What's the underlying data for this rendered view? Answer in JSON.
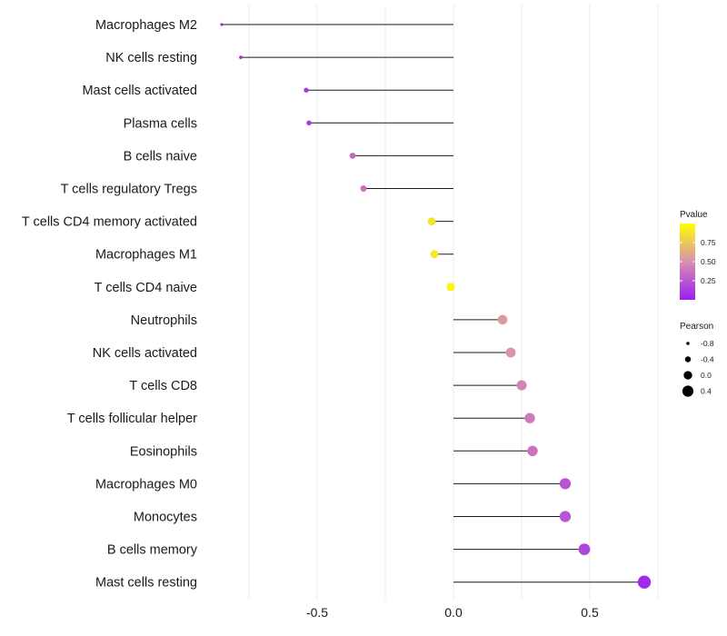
{
  "chart_data": {
    "type": "lollipop",
    "title": "",
    "xlabel": "",
    "ylabel": "",
    "xlim": [
      -1.0,
      0.75
    ],
    "xticks": [
      -0.5,
      0.0,
      0.5
    ],
    "xtick_labels": [
      "-0.5",
      "0.0",
      "0.5"
    ],
    "grid": true,
    "categories": [
      "Macrophages M2",
      "NK cells resting",
      "Mast cells activated",
      "Plasma cells",
      "B cells naive",
      "T cells regulatory  Tregs",
      "T cells CD4 memory activated",
      "Macrophages M1",
      "T cells CD4 naive",
      "Neutrophils",
      "NK cells activated",
      "T cells CD8",
      "T cells follicular helper",
      "Eosinophils",
      "Macrophages M0",
      "Monocytes",
      "B cells memory",
      "Mast cells resting"
    ],
    "pearson": [
      -0.85,
      -0.78,
      -0.54,
      -0.53,
      -0.37,
      -0.33,
      -0.08,
      -0.07,
      -0.01,
      0.18,
      0.21,
      0.25,
      0.28,
      0.29,
      0.41,
      0.41,
      0.48,
      0.7
    ],
    "pvalue": [
      0.02,
      0.05,
      0.12,
      0.13,
      0.32,
      0.36,
      0.88,
      0.9,
      0.97,
      0.55,
      0.52,
      0.45,
      0.4,
      0.38,
      0.24,
      0.24,
      0.17,
      0.05
    ],
    "legend_pvalue": {
      "title": "Pvalue",
      "ticks": [
        0.75,
        0.5,
        0.25
      ],
      "tick_labels": [
        "0.75",
        "0.50",
        "0.25"
      ],
      "range": [
        0.0,
        1.0
      ],
      "colors": {
        "low": "#9b1ff1",
        "mid": "#d98fb0",
        "high": "#ffff00"
      }
    },
    "legend_pearson": {
      "title": "Pearson",
      "values": [
        -0.8,
        -0.4,
        0.0,
        0.4
      ],
      "labels": [
        "-0.8",
        "-0.4",
        "0.0",
        "0.4"
      ]
    },
    "colors": {
      "stem": "#1a1a1a",
      "grid": "#ebebeb"
    }
  }
}
